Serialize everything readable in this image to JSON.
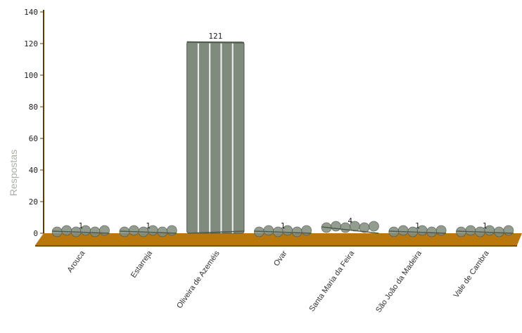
{
  "chart_data": {
    "type": "bar",
    "categories": [
      "Arouca",
      "Estarreja",
      "Oliveira de Azeméis",
      "Ovar",
      "Santa Maria da Feira",
      "São João da Madeira",
      "Vale de Cambra"
    ],
    "values": [
      1,
      1,
      121,
      1,
      4,
      1,
      1
    ],
    "data_labels": [
      "1",
      "1",
      "121",
      "1",
      "4",
      "1",
      "1"
    ],
    "title": "",
    "xlabel": "",
    "ylabel": "Respostas",
    "ylim": [
      0,
      140
    ],
    "yticks": [
      "0",
      "20",
      "40",
      "60",
      "80",
      "100",
      "120",
      "140"
    ],
    "grid": false,
    "legend": "none",
    "colors": {
      "bar_fill": "#7f8c7d",
      "bar_stroke": "#4f5a4d",
      "floor": "#b9770e",
      "floor_dark": "#7a4e08",
      "axis": "#5a3c08"
    }
  }
}
